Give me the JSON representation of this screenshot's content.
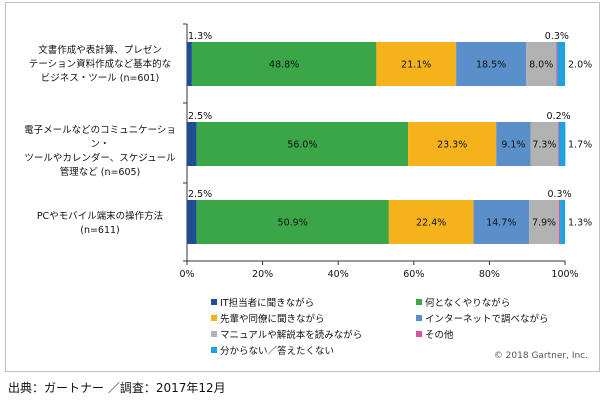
{
  "chart_data": {
    "type": "bar",
    "orientation": "horizontal-stacked-100",
    "categories": [
      "文書作成や表計算、プレゼンテーション資料作成など基本的なビジネス・ツール (n=601)",
      "電子メールなどのコミュニケーション・ツールやカレンダー、スケジュール管理など (n=605)",
      "PCやモバイル端末の操作方法 (n=611)"
    ],
    "category_lines": [
      [
        "文書作成や表計算、プレゼン",
        "テーション資料作成など基本的な",
        "ビジネス・ツール (n=601)"
      ],
      [
        "電子メールなどのコミュニケーション・",
        "ツールやカレンダー、スケジュール",
        "管理など (n=605)"
      ],
      [
        "PCやモバイル端末の操作方法",
        "(n=611)"
      ]
    ],
    "series": [
      {
        "name": "IT担当者に聞きながら",
        "color": "#1f4e96",
        "values": [
          1.3,
          2.5,
          2.5
        ]
      },
      {
        "name": "何となくやりながら",
        "color": "#3aa647",
        "values": [
          48.8,
          56.0,
          50.9
        ]
      },
      {
        "name": "先輩や同僚に聞きながら",
        "color": "#f5b21b",
        "values": [
          21.1,
          23.3,
          22.4
        ]
      },
      {
        "name": "インターネットで調べながら",
        "color": "#5b8fc9",
        "values": [
          18.5,
          9.1,
          14.7
        ]
      },
      {
        "name": "マニュアルや解説本を読みながら",
        "color": "#b2b2b2",
        "values": [
          8.0,
          7.3,
          7.9
        ]
      },
      {
        "name": "その他",
        "color": "#d9539f",
        "values": [
          0.3,
          0.2,
          0.3
        ]
      },
      {
        "name": "分からない／答えたくない",
        "color": "#1fa3e0",
        "values": [
          2.0,
          1.7,
          1.3
        ]
      }
    ],
    "labels": [
      [
        "1.3%",
        "48.8%",
        "21.1%",
        "18.5%",
        "8.0%",
        "0.3%",
        "2.0%"
      ],
      [
        "2.5%",
        "56.0%",
        "23.3%",
        "9.1%",
        "7.3%",
        "0.2%",
        "1.7%"
      ],
      [
        "2.5%",
        "50.9%",
        "22.4%",
        "14.7%",
        "7.9%",
        "0.3%",
        "1.3%"
      ]
    ],
    "x_ticks": [
      "0%",
      "20%",
      "40%",
      "60%",
      "80%",
      "100%"
    ],
    "xlim": [
      0,
      100
    ],
    "legend_position": "bottom"
  },
  "copyright": "© 2018 Gartner, Inc.",
  "source": "出典：ガートナー ／調査：2017年12月"
}
